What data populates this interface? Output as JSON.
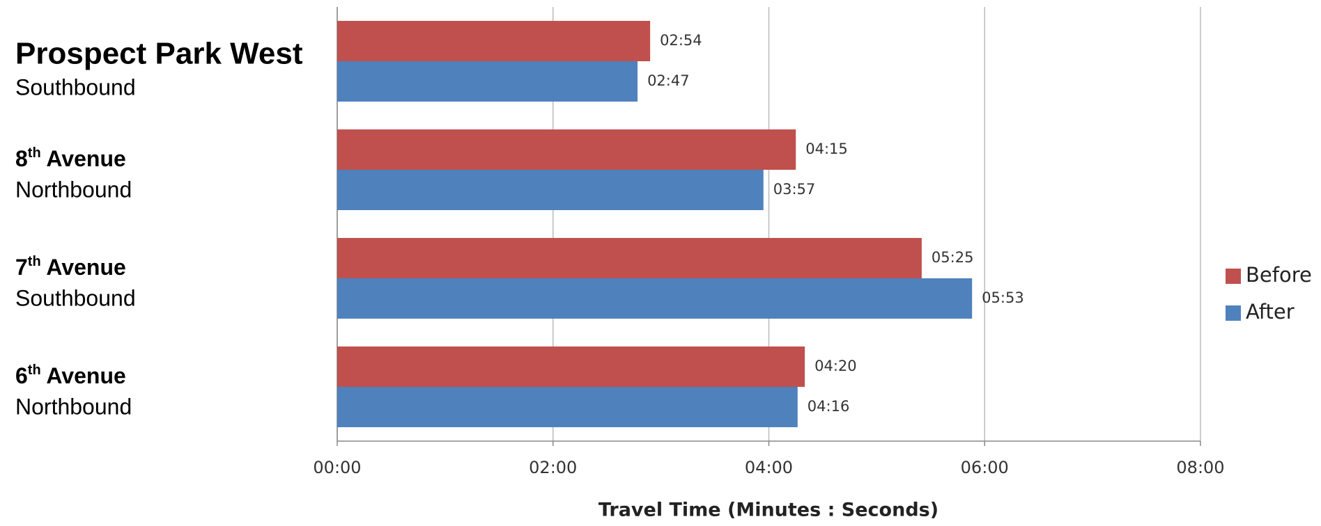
{
  "chart_data": {
    "type": "bar",
    "orientation": "horizontal",
    "categories": [
      "Prospect Park West",
      "8th Avenue",
      "7th Avenue",
      "6th Avenue"
    ],
    "directions": [
      "Southbound",
      "Northbound",
      "Southbound",
      "Northbound"
    ],
    "series": [
      {
        "name": "Before",
        "color": "#c0504d",
        "values": [
          174,
          255,
          325,
          260
        ],
        "value_labels": [
          "02:54",
          "04:15",
          "05:25",
          "04:20"
        ]
      },
      {
        "name": "After",
        "color": "#4f81bd",
        "values": [
          167,
          237,
          353,
          256
        ],
        "value_labels": [
          "02:47",
          "03:57",
          "05:53",
          "04:16"
        ]
      }
    ],
    "xlabel": "Travel Time (Minutes : Seconds)",
    "xlim": [
      0,
      480
    ],
    "xticks": [
      {
        "value": 0,
        "label": "00:00"
      },
      {
        "value": 120,
        "label": "02:00"
      },
      {
        "value": 240,
        "label": "04:00"
      },
      {
        "value": 360,
        "label": "06:00"
      },
      {
        "value": 480,
        "label": "08:00"
      }
    ],
    "grid": true,
    "legend": "right"
  }
}
